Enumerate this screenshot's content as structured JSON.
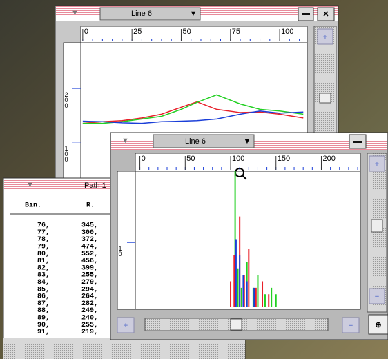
{
  "windows": [
    {
      "title": "Line 6",
      "chart": {
        "type": "line",
        "xlim": [
          -1,
          114
        ],
        "xticks": [
          0,
          25,
          50,
          75,
          100
        ],
        "ylim": [
          20,
          285
        ],
        "yticks": [
          100,
          200
        ],
        "x": [
          0,
          10,
          20,
          30,
          40,
          50,
          58,
          68,
          80,
          90,
          100,
          112
        ],
        "series": [
          {
            "color": "#e8202a",
            "values": [
              135,
              138,
              140,
              145,
              152,
              165,
              175,
              161,
              155,
              156,
              152,
              145
            ]
          },
          {
            "color": "#22d022",
            "values": [
              135,
              135,
              138,
              143,
              148,
              161,
              174,
              188,
              171,
              161,
              158,
              152
            ]
          },
          {
            "color": "#1a3ed8",
            "values": [
              139,
              138,
              136,
              135,
              138,
              139,
              140,
              143,
              152,
              158,
              154,
              156
            ]
          }
        ]
      }
    },
    {
      "title": "Line 6",
      "chart": {
        "type": "spikes",
        "xlim": [
          -5,
          243
        ],
        "xticks": [
          0,
          50,
          100,
          150,
          200
        ],
        "ylim": [
          0,
          21
        ],
        "yticks": [
          10
        ],
        "series": [
          {
            "color": "#22d022",
            "x": [
              105,
              108,
              112,
              118,
              125,
              130,
              138,
              145,
              150
            ],
            "values": [
              21,
              6,
              3,
              7,
              3,
              5,
              2,
              3,
              2
            ]
          },
          {
            "color": "#e8202a",
            "x": [
              100,
              104,
              110,
              115,
              120,
              128,
              135,
              142
            ],
            "values": [
              4,
              8,
              14,
              5,
              9,
              3,
              4,
              2
            ]
          },
          {
            "color": "#1a3ed8",
            "x": [
              106,
              110,
              114,
              118,
              126
            ],
            "values": [
              10.5,
              8,
              5,
              4,
              3
            ]
          }
        ]
      }
    }
  ],
  "table": {
    "title": "Path 1",
    "header": [
      "Bin.",
      "R."
    ],
    "rows": [
      [
        "76,",
        "345,"
      ],
      [
        "77,",
        "300,"
      ],
      [
        "78,",
        "372,"
      ],
      [
        "79,",
        "474,"
      ],
      [
        "80,",
        "552,"
      ],
      [
        "81,",
        "456,"
      ],
      [
        "82,",
        "399,"
      ],
      [
        "83,",
        "255,"
      ],
      [
        "84,",
        "279,"
      ],
      [
        "85,",
        "294,"
      ],
      [
        "86,",
        "264,"
      ],
      [
        "87,",
        "282,"
      ],
      [
        "88,",
        "249,"
      ],
      [
        "89,",
        "240,"
      ],
      [
        "90,",
        "255,"
      ],
      [
        "91,",
        "219,"
      ]
    ]
  }
}
